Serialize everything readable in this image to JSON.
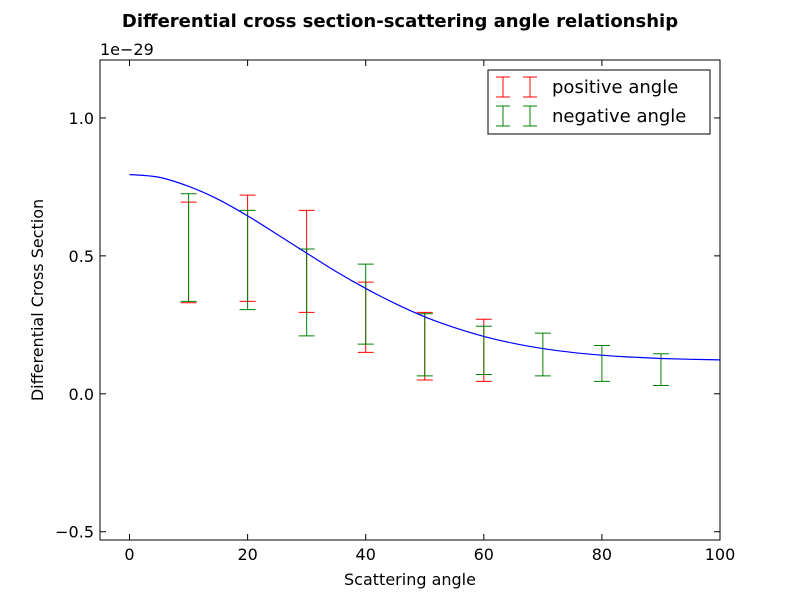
{
  "chart_data": {
    "type": "line",
    "title": "Differential cross section-scattering angle relationship",
    "xlabel": "Scattering angle",
    "ylabel": "Differential Cross Section",
    "y_offset_label": "1e−29",
    "xlim": [
      -5,
      100
    ],
    "ylim": [
      -0.53,
      1.21
    ],
    "x_ticks": [
      0,
      20,
      40,
      60,
      80,
      100
    ],
    "x_tick_labels": [
      "0",
      "20",
      "40",
      "60",
      "80",
      "100"
    ],
    "y_ticks": [
      -0.5,
      0.0,
      0.5,
      1.0
    ],
    "y_tick_labels": [
      "−0.5",
      "0.0",
      "0.5",
      "1.0"
    ],
    "grid": false,
    "legend_position": "top-right",
    "curve": {
      "color": "#0000ff",
      "x": [
        0,
        5,
        10,
        15,
        20,
        25,
        30,
        35,
        40,
        45,
        50,
        55,
        60,
        65,
        70,
        75,
        80,
        85,
        90,
        95,
        100
      ],
      "y": [
        0.795,
        0.785,
        0.752,
        0.705,
        0.645,
        0.578,
        0.51,
        0.443,
        0.382,
        0.327,
        0.279,
        0.24,
        0.208,
        0.183,
        0.164,
        0.15,
        0.14,
        0.133,
        0.128,
        0.125,
        0.123
      ]
    },
    "series": [
      {
        "name": "positive angle",
        "color": "#ff0000",
        "x": [
          10,
          20,
          30,
          40,
          50,
          60
        ],
        "y_low": [
          0.33,
          0.335,
          0.295,
          0.15,
          0.05,
          0.045
        ],
        "y_high": [
          0.695,
          0.72,
          0.665,
          0.405,
          0.295,
          0.27
        ]
      },
      {
        "name": "negative angle",
        "color": "#008000",
        "x": [
          10,
          20,
          30,
          40,
          50,
          60,
          70,
          80,
          90
        ],
        "y_low": [
          0.335,
          0.305,
          0.21,
          0.18,
          0.065,
          0.07,
          0.065,
          0.045,
          0.03
        ],
        "y_high": [
          0.725,
          0.665,
          0.525,
          0.47,
          0.29,
          0.245,
          0.22,
          0.175,
          0.145
        ]
      }
    ]
  }
}
